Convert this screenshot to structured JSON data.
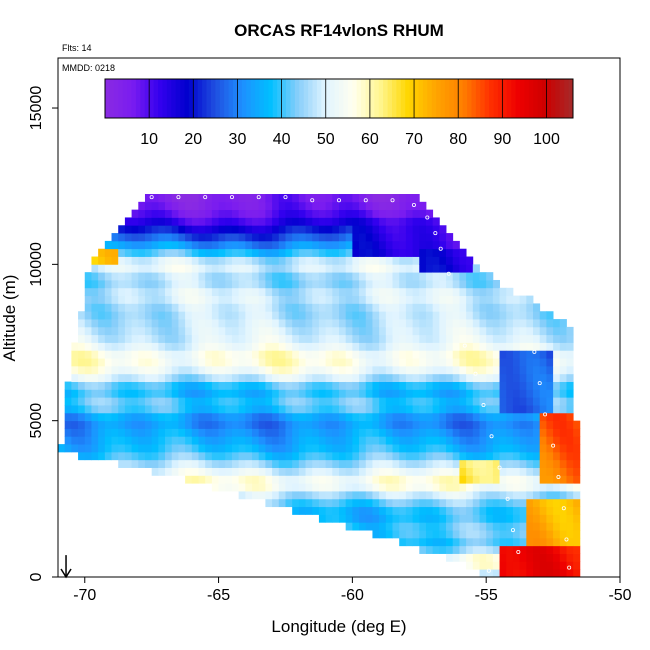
{
  "chart_data": {
    "type": "heatmap",
    "title": "ORCAS RF14vlonS RHUM",
    "flights_label": "Flts: 14",
    "date_label": "MMDD: 0218",
    "xlabel": "Longitude (deg E)",
    "ylabel": "Altitude (m)",
    "xlim": [
      -71,
      -50
    ],
    "ylim": [
      0,
      16600
    ],
    "x_ticks": [
      -70,
      -65,
      -60,
      -55,
      -50
    ],
    "y_ticks": [
      0,
      5000,
      10000,
      15000
    ],
    "x_tick_labels": [
      "-70",
      "-65",
      "-60",
      "-55",
      "-50"
    ],
    "y_tick_labels": [
      "0",
      "5000",
      "10000",
      "15000"
    ],
    "colorbar": {
      "min": 0,
      "max": 106,
      "ticks": [
        10,
        20,
        30,
        40,
        50,
        60,
        70,
        80,
        90,
        100
      ],
      "tick_labels": [
        "10",
        "20",
        "30",
        "40",
        "50",
        "60",
        "70",
        "80",
        "90",
        "100"
      ],
      "colors": [
        "#8a2be2",
        "#7a1cf0",
        "#3300ee",
        "#0000cd",
        "#1f4fe0",
        "#1e90ff",
        "#00bfff",
        "#87cefa",
        "#e0f4ff",
        "#fffff0",
        "#fff68f",
        "#ffd700",
        "#ffa500",
        "#ff7f00",
        "#ff3000",
        "#ee0000",
        "#cd0000",
        "#a52a2a"
      ]
    },
    "cell_size": {
      "lon": 0.25,
      "alt": 250
    },
    "grid": false,
    "legend": "colorbar-top",
    "envelope": {
      "left_lon": [
        [
          0,
          -70.9
        ],
        [
          4000,
          -70.9
        ],
        [
          5000,
          -70.8
        ],
        [
          7000,
          -70.5
        ],
        [
          9000,
          -70
        ],
        [
          10000,
          -69.8
        ],
        [
          11000,
          -69
        ],
        [
          12200,
          -67.7
        ]
      ],
      "top_alt": [
        [
          -67.7,
          12200
        ],
        [
          -57.7,
          12200
        ],
        [
          -57,
          11600
        ],
        [
          -55.5,
          10000
        ],
        [
          -54.5,
          9400
        ],
        [
          -53,
          8700
        ],
        [
          -51.7,
          7900
        ],
        [
          -51.5,
          0
        ]
      ],
      "bottom_alt": [
        [
          -70.9,
          4000
        ],
        [
          -67,
          3300
        ],
        [
          -63,
          2300
        ],
        [
          -59,
          1300
        ],
        [
          -56,
          500
        ],
        [
          -55,
          0
        ],
        [
          -51.5,
          0
        ]
      ]
    },
    "bands": [
      {
        "alt": 0,
        "rh": 40
      },
      {
        "alt": 500,
        "rh": 60
      },
      {
        "alt": 1000,
        "rh": 38
      },
      {
        "alt": 1500,
        "rh": 42
      },
      {
        "alt": 2000,
        "rh": 36
      },
      {
        "alt": 2500,
        "rh": 44
      },
      {
        "alt": 3000,
        "rh": 58
      },
      {
        "alt": 3500,
        "rh": 48
      },
      {
        "alt": 4000,
        "rh": 38
      },
      {
        "alt": 4500,
        "rh": 34
      },
      {
        "alt": 5000,
        "rh": 30
      },
      {
        "alt": 5500,
        "rh": 42
      },
      {
        "alt": 6000,
        "rh": 36
      },
      {
        "alt": 6500,
        "rh": 52
      },
      {
        "alt": 7000,
        "rh": 58
      },
      {
        "alt": 7500,
        "rh": 50
      },
      {
        "alt": 8000,
        "rh": 48
      },
      {
        "alt": 8500,
        "rh": 46
      },
      {
        "alt": 9000,
        "rh": 50
      },
      {
        "alt": 9500,
        "rh": 44
      },
      {
        "alt": 10000,
        "rh": 52
      },
      {
        "alt": 10500,
        "rh": 35
      },
      {
        "alt": 11000,
        "rh": 22
      },
      {
        "alt": 11500,
        "rh": 10
      },
      {
        "alt": 12000,
        "rh": 5
      }
    ],
    "features": [
      {
        "lon": [
          -70.2,
          -68.7
        ],
        "alt": [
          9900,
          10400
        ],
        "rh": 70
      },
      {
        "lon": [
          -60,
          -55
        ],
        "alt": [
          10200,
          11300
        ],
        "rh": 14
      },
      {
        "lon": [
          -57.5,
          -55.5
        ],
        "alt": [
          9700,
          10500
        ],
        "rh": 18
      },
      {
        "lon": [
          -54.5,
          -51.6
        ],
        "alt": [
          0,
          1000
        ],
        "rh": 92
      },
      {
        "lon": [
          -53.5,
          -51.6
        ],
        "alt": [
          1000,
          2500
        ],
        "rh": 75
      },
      {
        "lon": [
          -53,
          -51.6
        ],
        "alt": [
          3000,
          5200
        ],
        "rh": 82
      },
      {
        "lon": [
          -54.5,
          -52.5
        ],
        "alt": [
          5200,
          7200
        ],
        "rh": 25
      },
      {
        "lon": [
          -56,
          -54.5
        ],
        "alt": [
          3000,
          3700
        ],
        "rh": 66
      }
    ],
    "track_points": [
      {
        "lon": -67.5,
        "alt": 12150
      },
      {
        "lon": -66.5,
        "alt": 12150
      },
      {
        "lon": -65.5,
        "alt": 12150
      },
      {
        "lon": -64.5,
        "alt": 12150
      },
      {
        "lon": -63.5,
        "alt": 12150
      },
      {
        "lon": -62.5,
        "alt": 12150
      },
      {
        "lon": -61.5,
        "alt": 12050
      },
      {
        "lon": -60.5,
        "alt": 12050
      },
      {
        "lon": -59.5,
        "alt": 12050
      },
      {
        "lon": -58.5,
        "alt": 12050
      },
      {
        "lon": -57.7,
        "alt": 11900
      },
      {
        "lon": -57.2,
        "alt": 11500
      },
      {
        "lon": -56.9,
        "alt": 11000
      },
      {
        "lon": -56.7,
        "alt": 10500
      },
      {
        "lon": -56.4,
        "alt": 9700
      },
      {
        "lon": -55.8,
        "alt": 7400
      },
      {
        "lon": -55.4,
        "alt": 6500
      },
      {
        "lon": -55.1,
        "alt": 5500
      },
      {
        "lon": -54.8,
        "alt": 4500
      },
      {
        "lon": -54.5,
        "alt": 3500
      },
      {
        "lon": -54.2,
        "alt": 2500
      },
      {
        "lon": -54.0,
        "alt": 1500
      },
      {
        "lon": -53.8,
        "alt": 800
      },
      {
        "lon": -54.9,
        "alt": 200
      },
      {
        "lon": -53.2,
        "alt": 7200
      },
      {
        "lon": -53.0,
        "alt": 6200
      },
      {
        "lon": -52.8,
        "alt": 5200
      },
      {
        "lon": -52.5,
        "alt": 4200
      },
      {
        "lon": -52.3,
        "alt": 3200
      },
      {
        "lon": -52.1,
        "alt": 2200
      },
      {
        "lon": -52.0,
        "alt": 1200
      },
      {
        "lon": -51.9,
        "alt": 300
      }
    ],
    "arrow": {
      "lon": -70.7,
      "alt_from": 700,
      "alt_to": 0
    }
  }
}
